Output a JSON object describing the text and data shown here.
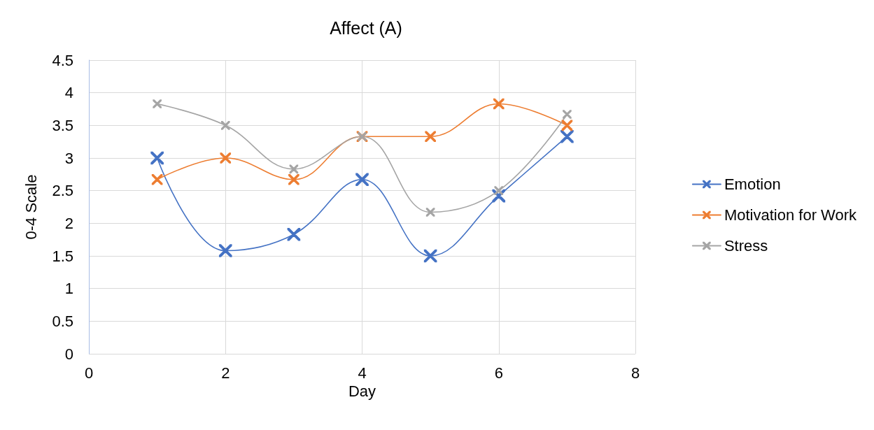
{
  "chart_data": {
    "type": "line",
    "title": "Affect (A)",
    "xlabel": "Day",
    "ylabel": "0-4 Scale",
    "x": [
      1,
      2,
      3,
      4,
      5,
      6,
      7
    ],
    "series": [
      {
        "name": "Emotion",
        "color": "#4472c4",
        "values": [
          3.0,
          1.58,
          1.83,
          2.67,
          1.5,
          2.42,
          3.33
        ]
      },
      {
        "name": "Motivation for Work",
        "color": "#ed7d31",
        "values": [
          2.67,
          3.0,
          2.67,
          3.33,
          3.33,
          3.83,
          3.5
        ]
      },
      {
        "name": "Stress",
        "color": "#a5a5a5",
        "values": [
          3.83,
          3.5,
          2.83,
          3.33,
          2.17,
          2.5,
          3.67
        ]
      }
    ],
    "xlim": [
      0,
      8
    ],
    "xticks": [
      0,
      2,
      4,
      6,
      8
    ],
    "ylim": [
      0,
      4.5
    ],
    "yticks": [
      0,
      0.5,
      1,
      1.5,
      2,
      2.5,
      3,
      3.5,
      4,
      4.5
    ],
    "grid": true,
    "legend": "right",
    "marker": "cross",
    "line_style": "solid"
  }
}
